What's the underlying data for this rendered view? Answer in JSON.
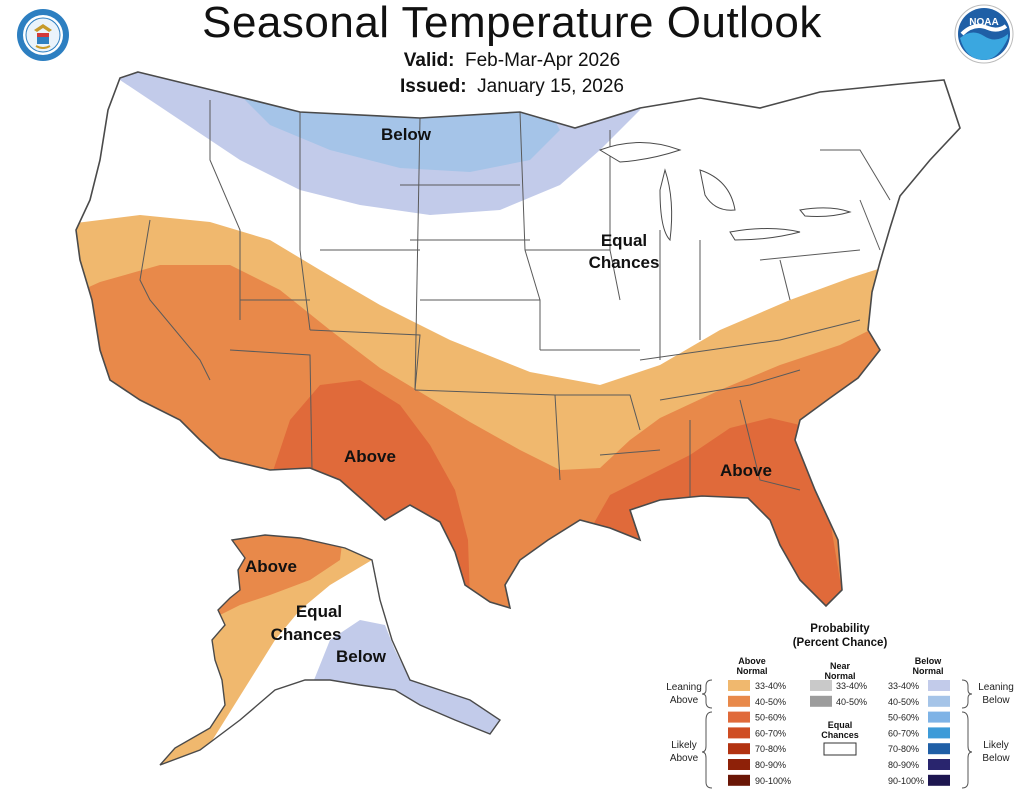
{
  "header": {
    "title": "Seasonal Temperature Outlook",
    "valid_label": "Valid:",
    "valid_value": "Feb-Mar-Apr 2026",
    "issued_label": "Issued:",
    "issued_value": "January 15, 2026"
  },
  "logos": {
    "left": "department-of-commerce-seal",
    "right": "noaa-logo",
    "right_text": "NOAA"
  },
  "map_labels": {
    "below_north": "Below",
    "equal_chances_line1": "Equal",
    "equal_chances_line2": "Chances",
    "above_southwest": "Above",
    "above_southeast": "Above",
    "alaska_above": "Above",
    "alaska_equal_line1": "Equal",
    "alaska_equal_line2": "Chances",
    "alaska_below": "Below"
  },
  "legend": {
    "title_line1": "Probability",
    "title_line2": "(Percent Chance)",
    "above_header_line1": "Above",
    "above_header_line2": "Normal",
    "near_header_line1": "Near",
    "near_header_line2": "Normal",
    "below_header_line1": "Below",
    "below_header_line2": "Normal",
    "leaning_above_line1": "Leaning",
    "leaning_above_line2": "Above",
    "likely_above_line1": "Likely",
    "likely_above_line2": "Above",
    "leaning_below_line1": "Leaning",
    "leaning_below_line2": "Below",
    "likely_below_line1": "Likely",
    "likely_below_line2": "Below",
    "equal_line1": "Equal",
    "equal_line2": "Chances",
    "above_rows": [
      {
        "label": "33-40%",
        "color": "#f0b86e"
      },
      {
        "label": "40-50%",
        "color": "#e8894a"
      },
      {
        "label": "50-60%",
        "color": "#e06a3a"
      },
      {
        "label": "60-70%",
        "color": "#cf4d22"
      },
      {
        "label": "70-80%",
        "color": "#b23210"
      },
      {
        "label": "80-90%",
        "color": "#8e2108"
      },
      {
        "label": "90-100%",
        "color": "#6a1606"
      }
    ],
    "near_rows": [
      {
        "label": "33-40%",
        "color": "#c9c9c9"
      },
      {
        "label": "40-50%",
        "color": "#9c9c9c"
      }
    ],
    "below_rows": [
      {
        "label": "33-40%",
        "color": "#c2cbea"
      },
      {
        "label": "40-50%",
        "color": "#a5c4e8"
      },
      {
        "label": "50-60%",
        "color": "#7eb3e6"
      },
      {
        "label": "60-70%",
        "color": "#3d9bd8"
      },
      {
        "label": "70-80%",
        "color": "#1f5fa6"
      },
      {
        "label": "80-90%",
        "color": "#29256e"
      },
      {
        "label": "90-100%",
        "color": "#1d1650"
      }
    ]
  }
}
